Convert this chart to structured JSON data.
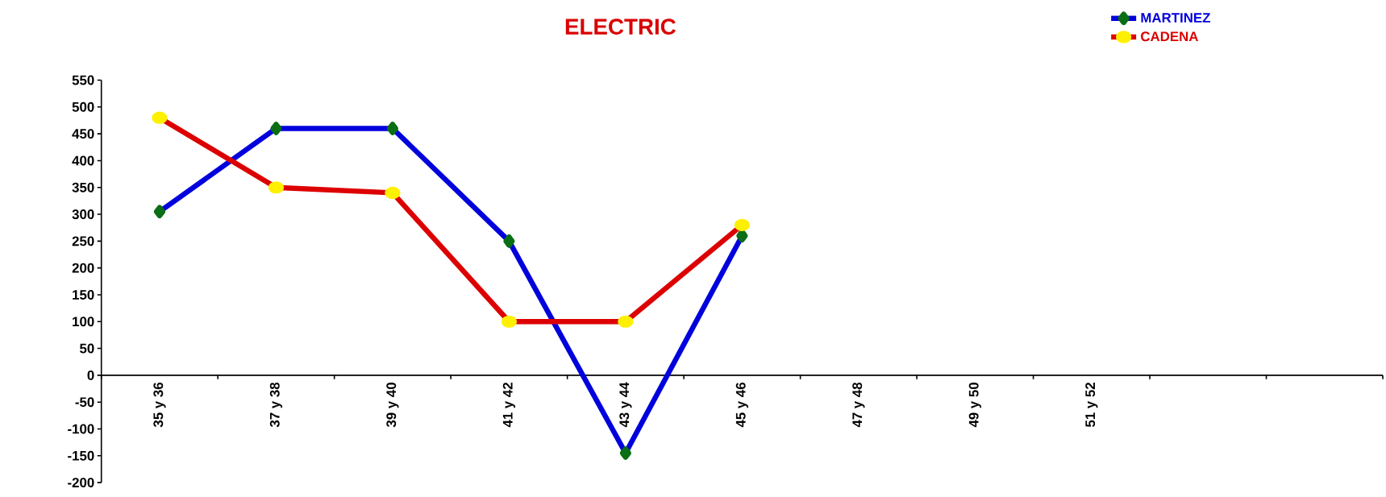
{
  "chart_data": {
    "type": "line",
    "title": "ELECTRIC",
    "categories": [
      "35 y 36",
      "37 y 38",
      "39 y 40",
      "41 y 42",
      "43 y 44",
      "45 y 46",
      "47 y 48",
      "49 y 50",
      "51 y 52",
      null,
      null
    ],
    "series": [
      {
        "name": "MARTINEZ",
        "color": "#0000dd",
        "marker": "diamond",
        "values": [
          305,
          460,
          460,
          250,
          -145,
          260,
          null,
          null,
          null,
          null,
          null
        ]
      },
      {
        "name": "CADENA",
        "color": "#dd0000",
        "marker": "circle",
        "values": [
          480,
          350,
          340,
          100,
          100,
          280,
          null,
          null,
          null,
          null,
          null
        ]
      }
    ],
    "ylim": [
      -200,
      550
    ],
    "yticks": [
      -200,
      -150,
      -100,
      -50,
      0,
      50,
      100,
      150,
      200,
      250,
      300,
      350,
      400,
      450,
      500,
      550
    ],
    "grid": false,
    "legend": "top right",
    "line_style": "solid"
  }
}
